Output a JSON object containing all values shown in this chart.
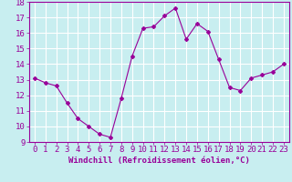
{
  "x": [
    0,
    1,
    2,
    3,
    4,
    5,
    6,
    7,
    8,
    9,
    10,
    11,
    12,
    13,
    14,
    15,
    16,
    17,
    18,
    19,
    20,
    21,
    22,
    23
  ],
  "y": [
    13.1,
    12.8,
    12.6,
    11.5,
    10.5,
    10.0,
    9.5,
    9.3,
    11.8,
    14.5,
    16.3,
    16.4,
    17.1,
    17.6,
    15.6,
    16.6,
    16.1,
    14.3,
    12.5,
    12.3,
    13.1,
    13.3,
    13.5,
    14.0
  ],
  "line_color": "#990099",
  "marker": "D",
  "marker_size": 2,
  "bg_color": "#c8eef0",
  "grid_color": "#ffffff",
  "xlabel": "Windchill (Refroidissement éolien,°C)",
  "xlim": [
    -0.5,
    23.5
  ],
  "ylim": [
    9,
    18
  ],
  "yticks": [
    9,
    10,
    11,
    12,
    13,
    14,
    15,
    16,
    17,
    18
  ],
  "xticks": [
    0,
    1,
    2,
    3,
    4,
    5,
    6,
    7,
    8,
    9,
    10,
    11,
    12,
    13,
    14,
    15,
    16,
    17,
    18,
    19,
    20,
    21,
    22,
    23
  ],
  "tick_label_color": "#990099",
  "xlabel_color": "#990099",
  "xlabel_fontsize": 6.5,
  "tick_fontsize": 6.5,
  "linewidth": 0.8
}
